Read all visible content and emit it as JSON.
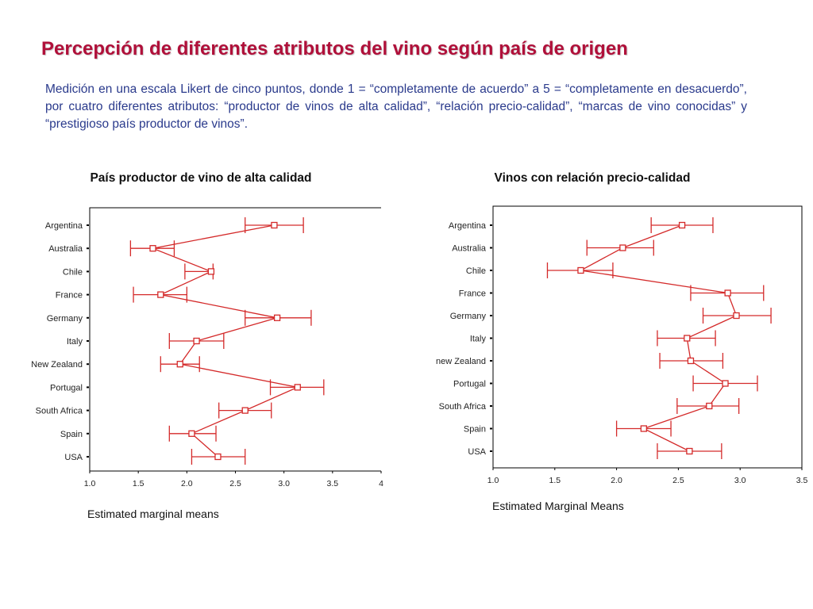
{
  "slide": {
    "title": "Percepción de diferentes atributos del vino según país de origen",
    "subtitle": "Medición en una escala Likert de cinco puntos, donde 1 = “completamente de acuerdo” a 5 = “completamente en desacuerdo”, por cuatro diferentes atributos: “productor de vinos de alta calidad”, “relación precio-calidad”, “marcas de vino conocidas” y “prestigioso país productor de vinos”."
  },
  "colors": {
    "title": "#b0103a",
    "subtitle": "#2a3a8c",
    "series": "#d42a2a"
  },
  "chart_data": [
    {
      "type": "line",
      "orientation": "horizontal",
      "title": "País productor de vino de alta calidad",
      "xlabel": "Estimated marginal means",
      "xlim": [
        1.0,
        4.0
      ],
      "xticks": [
        "1.0",
        "1.5",
        "2.0",
        "2.5",
        "3.0",
        "3.5",
        "4"
      ],
      "categories": [
        "Argentina",
        "Australia",
        "Chile",
        "France",
        "Germany",
        "Italy",
        "New Zealand",
        "Portugal",
        "South Africa",
        "Spain",
        "USA"
      ],
      "means": [
        2.9,
        1.65,
        2.25,
        1.73,
        2.93,
        2.1,
        1.93,
        3.14,
        2.6,
        2.05,
        2.32
      ],
      "ci_low": [
        2.6,
        1.42,
        1.98,
        1.45,
        2.6,
        1.82,
        1.73,
        2.86,
        2.33,
        1.82,
        2.05
      ],
      "ci_high": [
        3.2,
        1.87,
        2.27,
        2.0,
        3.28,
        2.38,
        2.13,
        3.41,
        2.87,
        2.3,
        2.6
      ]
    },
    {
      "type": "line",
      "orientation": "horizontal",
      "title": "Vinos con relación precio-calidad",
      "xlabel": "Estimated Marginal Means",
      "xlim": [
        1.0,
        3.5
      ],
      "xticks": [
        "1.0",
        "1.5",
        "2.0",
        "2.5",
        "3.0",
        "3.5"
      ],
      "categories": [
        "Argentina",
        "Australia",
        "Chile",
        "France",
        "Germany",
        "Italy",
        "new Zealand",
        "Portugal",
        "South Africa",
        "Spain",
        "USA"
      ],
      "means": [
        2.53,
        2.05,
        1.71,
        2.9,
        2.97,
        2.57,
        2.6,
        2.88,
        2.75,
        2.22,
        2.59
      ],
      "ci_low": [
        2.28,
        1.76,
        1.44,
        2.6,
        2.7,
        2.33,
        2.35,
        2.62,
        2.49,
        2.0,
        2.33
      ],
      "ci_high": [
        2.78,
        2.3,
        1.97,
        3.19,
        3.25,
        2.8,
        2.86,
        3.14,
        2.99,
        2.44,
        2.85
      ]
    }
  ]
}
